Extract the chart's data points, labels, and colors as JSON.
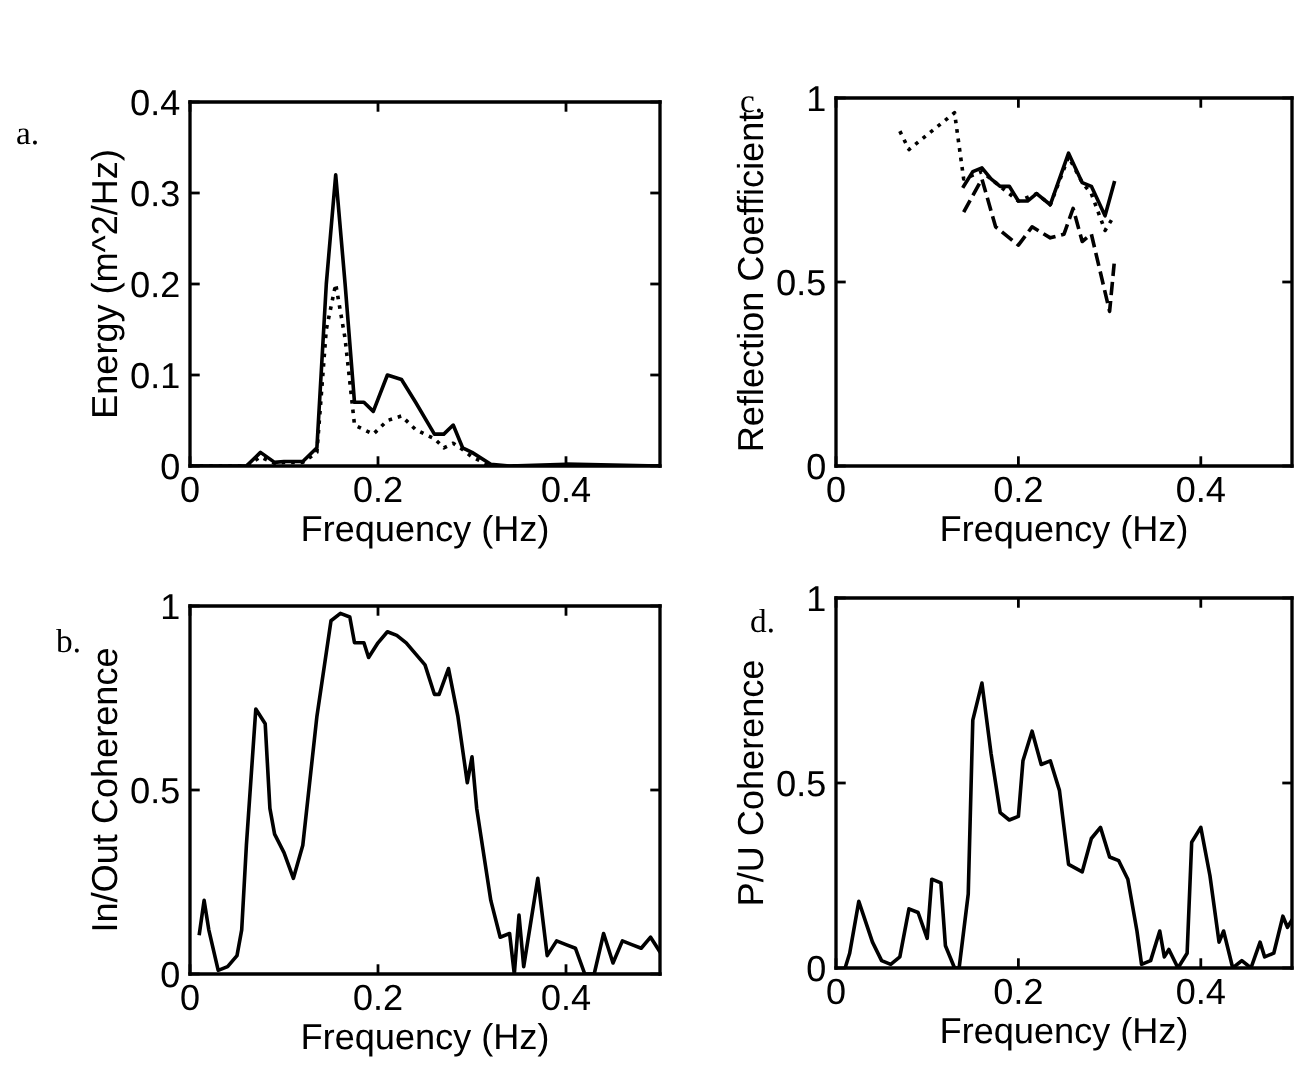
{
  "chart_data": [
    {
      "type": "line",
      "xlabel": "Frequency (Hz)",
      "ylabel": "Energy (m^2/Hz)",
      "annotations": [
        "a."
      ],
      "xlim": [
        0,
        0.5
      ],
      "ylim": [
        0,
        0.4
      ],
      "xticks": [
        0,
        0.2,
        0.4
      ],
      "yticks": [
        0,
        0.1,
        0.2,
        0.3,
        0.4
      ],
      "grid": false,
      "legend": false,
      "series": [
        {
          "color": "#000000",
          "line_style": "solid",
          "x": [
            0,
            0.06,
            0.075,
            0.09,
            0.1,
            0.12,
            0.135,
            0.145,
            0.155,
            0.165,
            0.175,
            0.185,
            0.195,
            0.21,
            0.225,
            0.24,
            0.26,
            0.27,
            0.28,
            0.29,
            0.3,
            0.32,
            0.34,
            0.4,
            0.5
          ],
          "values": [
            0,
            0,
            0.015,
            0.004,
            0.005,
            0.005,
            0.02,
            0.2,
            0.32,
            0.2,
            0.07,
            0.07,
            0.06,
            0.1,
            0.095,
            0.07,
            0.035,
            0.035,
            0.045,
            0.02,
            0.015,
            0.002,
            0,
            0.002,
            0
          ]
        },
        {
          "color": "#000000",
          "line_style": "dotted",
          "x": [
            0,
            0.06,
            0.075,
            0.09,
            0.1,
            0.12,
            0.135,
            0.145,
            0.155,
            0.165,
            0.175,
            0.185,
            0.195,
            0.21,
            0.225,
            0.24,
            0.26,
            0.27,
            0.28,
            0.29,
            0.3,
            0.32,
            0.34,
            0.4,
            0.5
          ],
          "values": [
            0,
            0,
            0.01,
            0.003,
            0.004,
            0.004,
            0.015,
            0.15,
            0.2,
            0.14,
            0.045,
            0.04,
            0.035,
            0.05,
            0.055,
            0.04,
            0.03,
            0.02,
            0.025,
            0.018,
            0.01,
            0,
            0,
            0,
            0
          ]
        }
      ]
    },
    {
      "type": "line",
      "xlabel": "Frequency (Hz)",
      "ylabel": "Reflection Coefficient",
      "annotations": [
        "c."
      ],
      "xlim": [
        0,
        0.5
      ],
      "ylim": [
        0,
        1
      ],
      "xticks": [
        0,
        0.2,
        0.4
      ],
      "yticks": [
        0,
        0.5,
        1
      ],
      "grid": false,
      "legend": false,
      "series": [
        {
          "color": "#000000",
          "line_style": "dotted",
          "x": [
            0.07,
            0.08,
            0.13,
            0.14,
            0.16,
            0.18,
            0.2,
            0.22,
            0.235,
            0.255,
            0.27,
            0.28,
            0.295,
            0.305
          ],
          "values": [
            0.91,
            0.86,
            0.96,
            0.78,
            0.8,
            0.76,
            0.72,
            0.74,
            0.71,
            0.84,
            0.77,
            0.74,
            0.64,
            0.68
          ]
        },
        {
          "color": "#000000",
          "line_style": "solid",
          "x": [
            0.14,
            0.15,
            0.16,
            0.17,
            0.18,
            0.19,
            0.2,
            0.21,
            0.22,
            0.235,
            0.255,
            0.27,
            0.28,
            0.295,
            0.305
          ],
          "values": [
            0.76,
            0.8,
            0.81,
            0.78,
            0.76,
            0.76,
            0.72,
            0.72,
            0.74,
            0.71,
            0.85,
            0.77,
            0.76,
            0.68,
            0.77
          ]
        },
        {
          "color": "#000000",
          "line_style": "dashed",
          "x": [
            0.14,
            0.16,
            0.175,
            0.19,
            0.2,
            0.215,
            0.235,
            0.25,
            0.26,
            0.27,
            0.28,
            0.3,
            0.305
          ],
          "values": [
            0.69,
            0.78,
            0.65,
            0.62,
            0.6,
            0.65,
            0.62,
            0.63,
            0.7,
            0.61,
            0.63,
            0.42,
            0.55
          ]
        }
      ]
    },
    {
      "type": "line",
      "xlabel": "Frequency (Hz)",
      "ylabel": "In/Out Coherence",
      "annotations": [
        "b."
      ],
      "xlim": [
        0,
        0.5
      ],
      "ylim": [
        0,
        1
      ],
      "xticks": [
        0,
        0.2,
        0.4
      ],
      "yticks": [
        0,
        0.5,
        1
      ],
      "grid": false,
      "legend": false,
      "series": [
        {
          "color": "#000000",
          "line_style": "solid",
          "x": [
            0.01,
            0.015,
            0.02,
            0.03,
            0.04,
            0.05,
            0.055,
            0.06,
            0.07,
            0.08,
            0.085,
            0.09,
            0.1,
            0.11,
            0.12,
            0.135,
            0.15,
            0.16,
            0.17,
            0.175,
            0.185,
            0.19,
            0.2,
            0.21,
            0.22,
            0.23,
            0.24,
            0.25,
            0.26,
            0.265,
            0.275,
            0.285,
            0.295,
            0.3,
            0.305,
            0.32,
            0.33,
            0.34,
            0.345,
            0.35,
            0.355,
            0.37,
            0.38,
            0.39,
            0.4,
            0.41,
            0.42,
            0.43,
            0.44,
            0.45,
            0.46,
            0.47,
            0.48,
            0.49,
            0.5
          ],
          "values": [
            0.11,
            0.2,
            0.12,
            0.01,
            0.02,
            0.05,
            0.12,
            0.35,
            0.72,
            0.68,
            0.45,
            0.38,
            0.33,
            0.26,
            0.35,
            0.7,
            0.96,
            0.98,
            0.97,
            0.9,
            0.9,
            0.86,
            0.9,
            0.93,
            0.92,
            0.9,
            0.87,
            0.84,
            0.76,
            0.76,
            0.83,
            0.7,
            0.52,
            0.59,
            0.45,
            0.2,
            0.1,
            0.11,
            0,
            0.16,
            0.02,
            0.26,
            0.05,
            0.09,
            0.08,
            0.07,
            0,
            0,
            0.11,
            0.03,
            0.09,
            0.08,
            0.07,
            0.1,
            0.06
          ]
        }
      ]
    },
    {
      "type": "line",
      "xlabel": "Frequency (Hz)",
      "ylabel": "P/U Coherence",
      "annotations": [
        "d."
      ],
      "xlim": [
        0,
        0.5
      ],
      "ylim": [
        0,
        1
      ],
      "xticks": [
        0,
        0.2,
        0.4
      ],
      "yticks": [
        0,
        0.5,
        1
      ],
      "grid": false,
      "legend": false,
      "series": [
        {
          "color": "#000000",
          "line_style": "solid",
          "x": [
            0.01,
            0.015,
            0.025,
            0.04,
            0.05,
            0.06,
            0.07,
            0.08,
            0.09,
            0.1,
            0.105,
            0.115,
            0.12,
            0.13,
            0.135,
            0.145,
            0.15,
            0.16,
            0.17,
            0.18,
            0.19,
            0.2,
            0.205,
            0.215,
            0.225,
            0.235,
            0.245,
            0.255,
            0.27,
            0.28,
            0.29,
            0.3,
            0.31,
            0.32,
            0.33,
            0.335,
            0.345,
            0.355,
            0.36,
            0.365,
            0.375,
            0.385,
            0.39,
            0.4,
            0.41,
            0.42,
            0.425,
            0.435,
            0.445,
            0.455,
            0.465,
            0.47,
            0.48,
            0.49,
            0.495,
            0.5
          ],
          "values": [
            0,
            0.04,
            0.18,
            0.07,
            0.02,
            0.01,
            0.03,
            0.16,
            0.15,
            0.08,
            0.24,
            0.23,
            0.06,
            0,
            0,
            0.2,
            0.67,
            0.77,
            0.58,
            0.42,
            0.4,
            0.41,
            0.56,
            0.64,
            0.55,
            0.56,
            0.48,
            0.28,
            0.26,
            0.35,
            0.38,
            0.3,
            0.29,
            0.24,
            0.1,
            0.01,
            0.02,
            0.1,
            0.03,
            0.05,
            0,
            0.04,
            0.34,
            0.38,
            0.25,
            0.07,
            0.1,
            0,
            0.02,
            0,
            0.07,
            0.03,
            0.04,
            0.14,
            0.11,
            0.13
          ]
        }
      ]
    }
  ]
}
